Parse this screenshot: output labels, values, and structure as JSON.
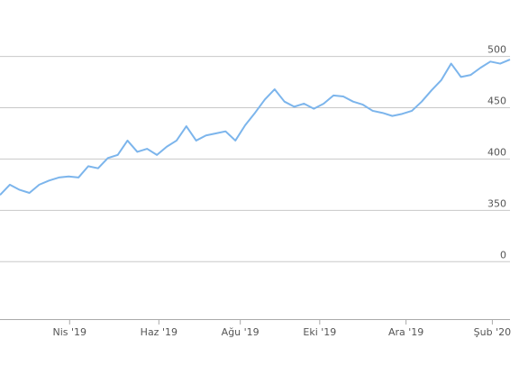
{
  "chart_data": {
    "type": "line",
    "x": [
      0,
      1,
      2,
      3,
      4,
      5,
      6,
      7,
      8,
      9,
      10,
      11,
      12,
      13,
      14,
      15,
      16,
      17,
      18,
      19,
      20,
      21,
      22,
      23,
      24,
      25,
      26,
      27,
      28,
      29,
      30,
      31,
      32,
      33,
      34,
      35,
      36,
      37,
      38,
      39,
      40,
      41,
      42,
      43,
      44,
      45,
      46,
      47,
      48,
      49,
      50,
      51,
      52
    ],
    "series": [
      {
        "color": "#7cb5ec",
        "values": [
          365,
          375,
          370,
          367,
          375,
          379,
          382,
          383,
          382,
          393,
          391,
          401,
          404,
          418,
          407,
          410,
          404,
          412,
          418,
          432,
          418,
          423,
          425,
          427,
          418,
          433,
          445,
          458,
          468,
          456,
          451,
          454,
          449,
          454,
          462,
          461,
          456,
          453,
          447,
          445,
          442,
          444,
          447,
          456,
          467,
          477,
          493,
          480,
          482,
          489,
          495,
          493,
          497
        ]
      }
    ],
    "xlim": [
      0,
      52
    ],
    "xticks": [
      {
        "value": 7.1,
        "label": "Nis '19"
      },
      {
        "value": 16.2,
        "label": "Haz '19"
      },
      {
        "value": 24.5,
        "label": "Ağu '19"
      },
      {
        "value": 32.6,
        "label": "Eki '19"
      },
      {
        "value": 41.4,
        "label": "Ara '19"
      },
      {
        "value": 50.2,
        "label": "Şub '20"
      }
    ],
    "ylim": [
      244,
      555
    ],
    "yticks": [
      {
        "value": 300,
        "label": "0"
      },
      350,
      400,
      450,
      500
    ],
    "grid": true
  }
}
